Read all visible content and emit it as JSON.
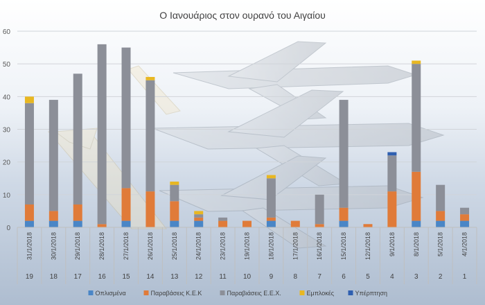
{
  "chart_data": {
    "type": "bar",
    "stacked": true,
    "title": "Ο Ιανουάριος στον ουρανό του Αιγαίου",
    "ylim": [
      0,
      60
    ],
    "yticks": [
      0,
      10,
      20,
      30,
      40,
      50,
      60
    ],
    "grid": true,
    "legend_position": "bottom",
    "background": "photo of fighter jets in formation over sea (decorative)",
    "categories": [
      {
        "date": "31/1/2018",
        "num": "19"
      },
      {
        "date": "30/1/2018",
        "num": "18"
      },
      {
        "date": "29/1/2018",
        "num": "17"
      },
      {
        "date": "28/1/2018",
        "num": "16"
      },
      {
        "date": "27/1/2018",
        "num": "15"
      },
      {
        "date": "26/1/2018",
        "num": "14"
      },
      {
        "date": "25/1/2018",
        "num": "13"
      },
      {
        "date": "24/1/2018",
        "num": "12"
      },
      {
        "date": "23/1/2018",
        "num": "11"
      },
      {
        "date": "19/1/2018",
        "num": "10"
      },
      {
        "date": "18/1/2018",
        "num": "9"
      },
      {
        "date": "17/1/2018",
        "num": "8"
      },
      {
        "date": "16/1/2018",
        "num": "7"
      },
      {
        "date": "15/1/2018",
        "num": "6"
      },
      {
        "date": "12/1/2018",
        "num": "5"
      },
      {
        "date": "9/1/2018",
        "num": "4"
      },
      {
        "date": "8/1/2018",
        "num": "3"
      },
      {
        "date": "5/1/2018",
        "num": "2"
      },
      {
        "date": "4/1/2018",
        "num": "1"
      }
    ],
    "series": [
      {
        "name": "Οπλισμένα",
        "color": "#4a86c6",
        "values": [
          2,
          2,
          2,
          0,
          2,
          0,
          2,
          2,
          0,
          0,
          2,
          0,
          0,
          2,
          0,
          0,
          2,
          2,
          2
        ]
      },
      {
        "name": "Παραβάσεις Κ.Ε.Κ",
        "color": "#e07b39",
        "values": [
          5,
          3,
          5,
          1,
          10,
          11,
          6,
          1,
          2,
          2,
          1,
          2,
          1,
          4,
          1,
          11,
          15,
          3,
          2
        ]
      },
      {
        "name": "Παραβιάσεις Ε.Ε.Χ.",
        "color": "#8c8f98",
        "values": [
          31,
          34,
          40,
          55,
          43,
          34,
          5,
          1,
          1,
          0,
          12,
          0,
          9,
          33,
          0,
          11,
          33,
          8,
          2
        ]
      },
      {
        "name": "Εμπλοκές",
        "color": "#e8b722",
        "values": [
          2,
          0,
          0,
          0,
          0,
          1,
          1,
          1,
          0,
          0,
          1,
          0,
          0,
          0,
          0,
          0,
          1,
          0,
          0
        ]
      },
      {
        "name": "Υπέρπτηση",
        "color": "#2f5fb0",
        "values": [
          0,
          0,
          0,
          0,
          0,
          0,
          0,
          0,
          0,
          0,
          0,
          0,
          0,
          0,
          0,
          1,
          0,
          0,
          0
        ]
      }
    ]
  }
}
